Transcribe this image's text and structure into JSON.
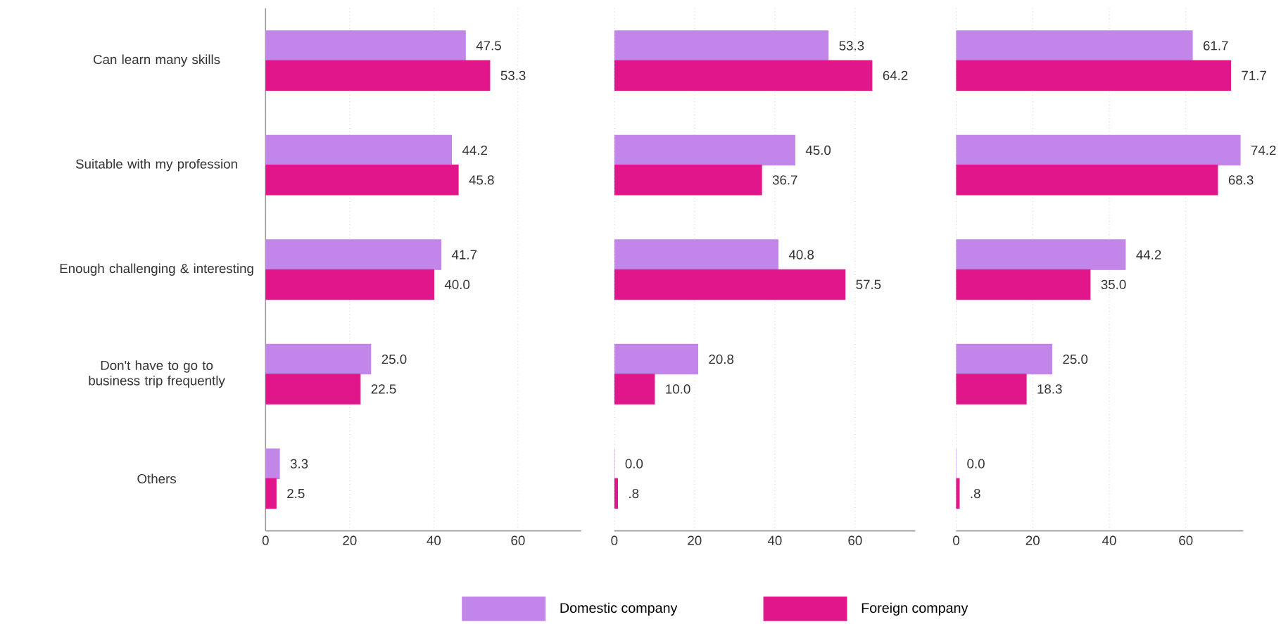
{
  "chart_data": [
    {
      "type": "bar",
      "orientation": "horizontal",
      "categories": [
        "Can learn many skills",
        "Suitable with my profession",
        "Enough challenging & interesting",
        "Don't have to go to business trip frequently",
        "Others"
      ],
      "series": [
        {
          "name": "Domestic company",
          "color": "#c285ea",
          "values": [
            47.5,
            44.2,
            41.7,
            25.0,
            3.3
          ],
          "value_labels": [
            "47.5",
            "44.2",
            "41.7",
            "25.0",
            "3.3"
          ]
        },
        {
          "name": "Foreign company",
          "color": "#e0168a",
          "values": [
            53.3,
            45.8,
            40.0,
            22.5,
            2.5
          ],
          "value_labels": [
            "53.3",
            "45.8",
            "40.0",
            "22.5",
            "2.5"
          ]
        }
      ],
      "xlim": [
        0,
        75
      ],
      "xticks": [
        0,
        20,
        40,
        60
      ],
      "grid": "x",
      "legend": "bottom"
    },
    {
      "type": "bar",
      "orientation": "horizontal",
      "categories": [
        null,
        null,
        null,
        null,
        null
      ],
      "series": [
        {
          "color": "#c285ea",
          "values": [
            53.3,
            45.0,
            40.8,
            20.8,
            0.0
          ],
          "value_labels": [
            "53.3",
            "45.0",
            "40.8",
            "20.8",
            "0.0"
          ]
        },
        {
          "color": "#e0168a",
          "values": [
            64.2,
            36.7,
            57.5,
            10.0,
            0.8
          ],
          "value_labels": [
            "64.2",
            "36.7",
            "57.5",
            "10.0",
            ".8"
          ]
        }
      ],
      "xlim": [
        0,
        75
      ],
      "xticks": [
        0,
        20,
        40,
        60
      ],
      "grid": "x",
      "tick_labels": "x"
    },
    {
      "type": "bar",
      "orientation": "horizontal",
      "categories": [
        null,
        null,
        null,
        null,
        null
      ],
      "series": [
        {
          "color": "#c285ea",
          "values": [
            61.7,
            74.2,
            44.2,
            25.0,
            0.0
          ],
          "value_labels": [
            "61.7",
            "74.2",
            "44.2",
            "25.0",
            "0.0"
          ]
        },
        {
          "color": "#e0168a",
          "values": [
            71.7,
            68.3,
            35.0,
            18.3,
            0.8
          ],
          "value_labels": [
            "71.7",
            "68.3",
            "35.0",
            "18.3",
            ".8"
          ]
        }
      ],
      "xlim": [
        0,
        75
      ],
      "xticks": [
        0,
        20,
        40,
        60
      ],
      "grid": "x",
      "tick_labels": "x"
    }
  ]
}
